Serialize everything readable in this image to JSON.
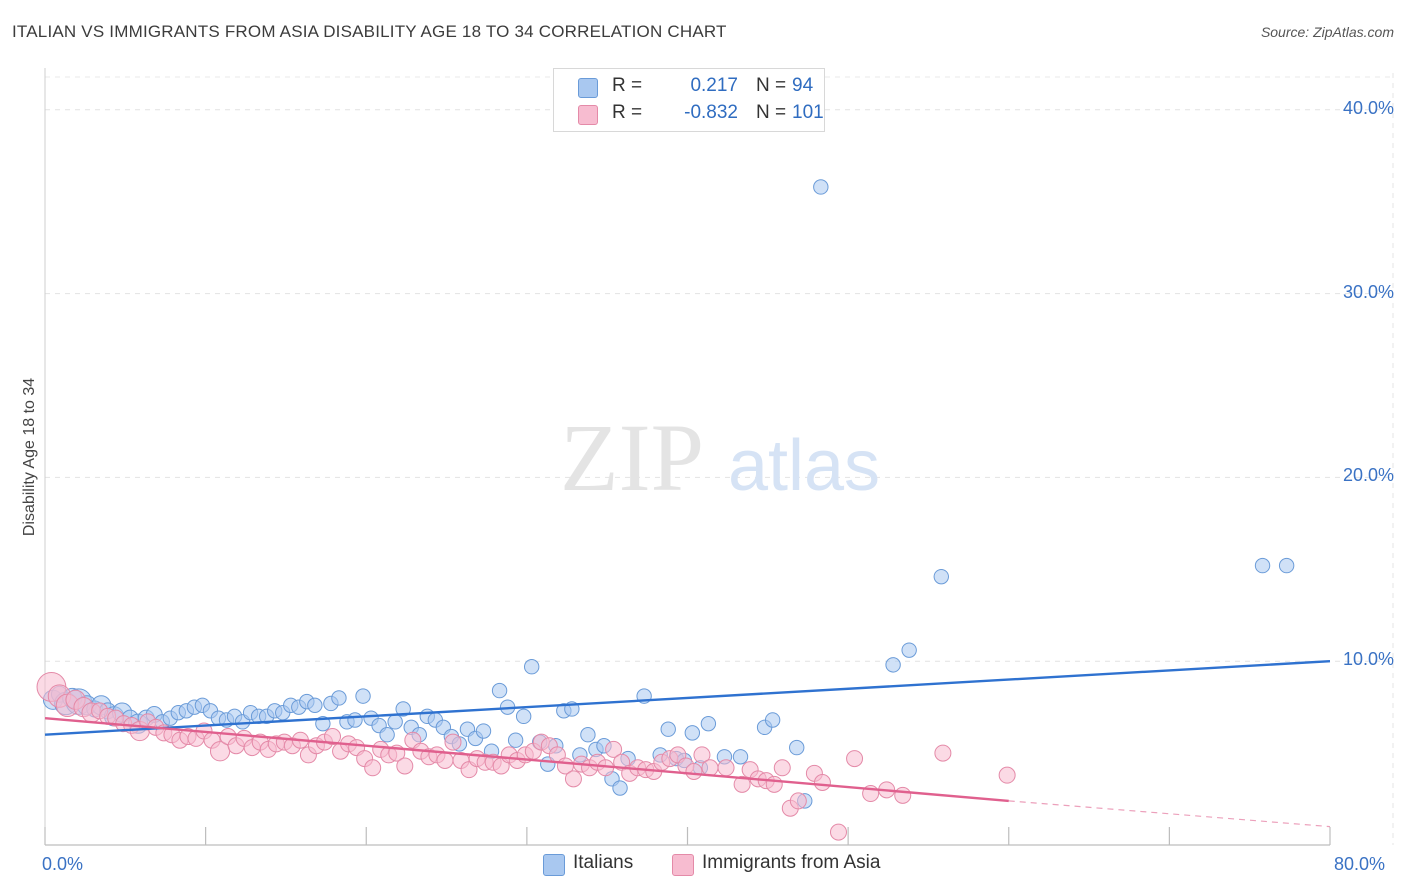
{
  "title": "ITALIAN VS IMMIGRANTS FROM ASIA DISABILITY AGE 18 TO 34 CORRELATION CHART",
  "source": "Source: ZipAtlas.com",
  "watermark": {
    "zip": "ZIP",
    "atlas": "atlas"
  },
  "legend": {
    "rows": [
      {
        "r_label": "R =",
        "r_value": "0.217",
        "n_label": "N =",
        "n_value": "94",
        "color": "#a9c8f0",
        "border": "#6a9bd8"
      },
      {
        "r_label": "R =",
        "r_value": "-0.832",
        "n_label": "N =",
        "n_value": "101",
        "color": "#f7bcd0",
        "border": "#e48aa8"
      }
    ]
  },
  "bottom_legend": [
    {
      "label": "Italians",
      "color": "#a9c8f0",
      "border": "#6a9bd8"
    },
    {
      "label": "Immigrants from Asia",
      "color": "#f7bcd0",
      "border": "#e48aa8"
    }
  ],
  "chart_data": {
    "type": "scatter",
    "ylabel": "Disability Age 18 to 34",
    "xlim": [
      0,
      80
    ],
    "ylim": [
      0,
      42
    ],
    "x_tick_labels": [
      "0.0%",
      "80.0%"
    ],
    "y_ticks": [
      {
        "value": 10,
        "label": "10.0%"
      },
      {
        "value": 20,
        "label": "20.0%"
      },
      {
        "value": 30,
        "label": "30.0%"
      },
      {
        "value": 40,
        "label": "40.0%"
      }
    ],
    "grid": true,
    "series": [
      {
        "name": "Italians",
        "color": "#a9c8f0",
        "stroke": "#6a9bd8",
        "line_color": "#2f72d0",
        "trend": {
          "x": [
            0,
            80
          ],
          "y": [
            6.0,
            10.0
          ]
        },
        "points": [
          [
            0.5,
            7.9,
            12
          ],
          [
            0.9,
            8.2,
            10
          ],
          [
            1.3,
            7.7,
            14
          ],
          [
            1.7,
            8.0,
            12
          ],
          [
            2.1,
            7.8,
            16
          ],
          [
            2.6,
            7.6,
            12
          ],
          [
            3.1,
            7.4,
            10
          ],
          [
            3.5,
            7.6,
            12
          ],
          [
            3.9,
            7.3,
            10
          ],
          [
            4.3,
            7.0,
            12
          ],
          [
            4.8,
            7.2,
            12
          ],
          [
            5.3,
            6.9,
            10
          ],
          [
            5.8,
            6.6,
            12
          ],
          [
            6.3,
            6.9,
            10
          ],
          [
            6.8,
            7.1,
            10
          ],
          [
            7.3,
            6.7,
            9
          ],
          [
            7.8,
            6.9,
            9
          ],
          [
            8.3,
            7.2,
            9
          ],
          [
            8.8,
            7.3,
            9
          ],
          [
            9.3,
            7.5,
            9
          ],
          [
            9.8,
            7.6,
            9
          ],
          [
            10.3,
            7.3,
            9
          ],
          [
            10.8,
            6.9,
            9
          ],
          [
            11.3,
            6.8,
            9
          ],
          [
            11.8,
            7.0,
            9
          ],
          [
            12.3,
            6.7,
            9
          ],
          [
            12.8,
            7.2,
            9
          ],
          [
            13.3,
            7.0,
            9
          ],
          [
            13.8,
            7.0,
            9
          ],
          [
            14.3,
            7.3,
            9
          ],
          [
            14.8,
            7.2,
            9
          ],
          [
            15.3,
            7.6,
            9
          ],
          [
            15.8,
            7.5,
            9
          ],
          [
            16.3,
            7.8,
            9
          ],
          [
            16.8,
            7.6,
            9
          ],
          [
            17.3,
            6.6,
            9
          ],
          [
            17.8,
            7.7,
            9
          ],
          [
            18.3,
            8.0,
            9
          ],
          [
            18.8,
            6.7,
            9
          ],
          [
            19.3,
            6.8,
            9
          ],
          [
            19.8,
            8.1,
            9
          ],
          [
            20.3,
            6.9,
            9
          ],
          [
            20.8,
            6.5,
            9
          ],
          [
            21.3,
            6.0,
            9
          ],
          [
            21.8,
            6.7,
            9
          ],
          [
            22.3,
            7.4,
            9
          ],
          [
            22.8,
            6.4,
            9
          ],
          [
            23.3,
            6.0,
            9
          ],
          [
            23.8,
            7.0,
            9
          ],
          [
            24.3,
            6.8,
            9
          ],
          [
            24.8,
            6.4,
            9
          ],
          [
            25.3,
            5.9,
            9
          ],
          [
            25.8,
            5.5,
            9
          ],
          [
            26.3,
            6.3,
            9
          ],
          [
            26.8,
            5.8,
            9
          ],
          [
            27.3,
            6.2,
            9
          ],
          [
            27.8,
            5.1,
            9
          ],
          [
            28.3,
            8.4,
            9
          ],
          [
            28.8,
            7.5,
            9
          ],
          [
            29.3,
            5.7,
            9
          ],
          [
            29.8,
            7.0,
            9
          ],
          [
            30.3,
            9.7,
            9
          ],
          [
            30.8,
            5.6,
            9
          ],
          [
            31.3,
            4.4,
            9
          ],
          [
            31.8,
            5.4,
            9
          ],
          [
            32.3,
            7.3,
            9
          ],
          [
            32.8,
            7.4,
            9
          ],
          [
            33.3,
            4.9,
            9
          ],
          [
            33.8,
            6.0,
            9
          ],
          [
            34.3,
            5.2,
            9
          ],
          [
            34.8,
            5.4,
            9
          ],
          [
            35.3,
            3.6,
            9
          ],
          [
            35.8,
            3.1,
            9
          ],
          [
            36.3,
            4.7,
            9
          ],
          [
            37.3,
            8.1,
            9
          ],
          [
            38.3,
            4.9,
            9
          ],
          [
            38.8,
            6.3,
            9
          ],
          [
            39.3,
            4.7,
            9
          ],
          [
            39.8,
            4.6,
            9
          ],
          [
            40.3,
            6.1,
            9
          ],
          [
            40.8,
            4.2,
            9
          ],
          [
            41.3,
            6.6,
            9
          ],
          [
            42.3,
            4.8,
            9
          ],
          [
            43.3,
            4.8,
            9
          ],
          [
            44.8,
            6.4,
            9
          ],
          [
            45.3,
            6.8,
            9
          ],
          [
            46.8,
            5.3,
            9
          ],
          [
            47.3,
            2.4,
            9
          ],
          [
            48.3,
            35.8,
            9
          ],
          [
            52.8,
            9.8,
            9
          ],
          [
            53.8,
            10.6,
            9
          ],
          [
            55.8,
            14.6,
            9
          ],
          [
            75.8,
            15.2,
            9
          ],
          [
            77.3,
            15.2,
            9
          ]
        ]
      },
      {
        "name": "Immigrants from Asia",
        "color": "#f7bcd0",
        "stroke": "#e48aa8",
        "line_color": "#e0608e",
        "trend": {
          "x": [
            0,
            60
          ],
          "y": [
            6.9,
            2.4
          ]
        },
        "trend_dashed": {
          "x": [
            60,
            80
          ],
          "y": [
            2.4,
            1.0
          ]
        },
        "points": [
          [
            0.4,
            8.6,
            18
          ],
          [
            0.9,
            8.1,
            14
          ],
          [
            1.4,
            7.6,
            14
          ],
          [
            1.9,
            7.9,
            12
          ],
          [
            2.4,
            7.5,
            12
          ],
          [
            2.9,
            7.2,
            12
          ],
          [
            3.4,
            7.3,
            10
          ],
          [
            3.9,
            7.0,
            10
          ],
          [
            4.4,
            6.9,
            10
          ],
          [
            4.9,
            6.6,
            10
          ],
          [
            5.4,
            6.5,
            10
          ],
          [
            5.9,
            6.2,
            12
          ],
          [
            6.4,
            6.7,
            10
          ],
          [
            6.9,
            6.4,
            10
          ],
          [
            7.4,
            6.1,
            10
          ],
          [
            7.9,
            6.0,
            10
          ],
          [
            8.4,
            5.7,
            10
          ],
          [
            8.9,
            5.9,
            10
          ],
          [
            9.4,
            5.8,
            10
          ],
          [
            9.9,
            6.2,
            10
          ],
          [
            10.4,
            5.7,
            10
          ],
          [
            10.9,
            5.1,
            12
          ],
          [
            11.4,
            5.9,
            10
          ],
          [
            11.9,
            5.4,
            10
          ],
          [
            12.4,
            5.8,
            10
          ],
          [
            12.9,
            5.3,
            10
          ],
          [
            13.4,
            5.6,
            10
          ],
          [
            13.9,
            5.2,
            10
          ],
          [
            14.4,
            5.5,
            10
          ],
          [
            14.9,
            5.6,
            10
          ],
          [
            15.4,
            5.4,
            10
          ],
          [
            15.9,
            5.7,
            10
          ],
          [
            16.4,
            4.9,
            10
          ],
          [
            16.9,
            5.4,
            10
          ],
          [
            17.4,
            5.6,
            10
          ],
          [
            17.9,
            5.9,
            10
          ],
          [
            18.4,
            5.1,
            10
          ],
          [
            18.9,
            5.5,
            10
          ],
          [
            19.4,
            5.3,
            10
          ],
          [
            19.9,
            4.7,
            10
          ],
          [
            20.4,
            4.2,
            10
          ],
          [
            20.9,
            5.2,
            10
          ],
          [
            21.4,
            4.9,
            10
          ],
          [
            21.9,
            5.0,
            10
          ],
          [
            22.4,
            4.3,
            10
          ],
          [
            22.9,
            5.7,
            10
          ],
          [
            23.4,
            5.1,
            10
          ],
          [
            23.9,
            4.8,
            10
          ],
          [
            24.4,
            4.9,
            10
          ],
          [
            24.9,
            4.6,
            10
          ],
          [
            25.4,
            5.6,
            10
          ],
          [
            25.9,
            4.6,
            10
          ],
          [
            26.4,
            4.1,
            10
          ],
          [
            26.9,
            4.7,
            10
          ],
          [
            27.4,
            4.5,
            10
          ],
          [
            27.9,
            4.5,
            10
          ],
          [
            28.4,
            4.3,
            10
          ],
          [
            28.9,
            4.9,
            10
          ],
          [
            29.4,
            4.6,
            10
          ],
          [
            29.9,
            4.9,
            10
          ],
          [
            30.4,
            5.1,
            10
          ],
          [
            30.9,
            5.6,
            10
          ],
          [
            31.4,
            5.4,
            10
          ],
          [
            31.9,
            4.9,
            10
          ],
          [
            32.4,
            4.3,
            10
          ],
          [
            32.9,
            3.6,
            10
          ],
          [
            33.4,
            4.4,
            10
          ],
          [
            33.9,
            4.2,
            10
          ],
          [
            34.4,
            4.5,
            10
          ],
          [
            34.9,
            4.2,
            10
          ],
          [
            35.4,
            5.2,
            10
          ],
          [
            35.9,
            4.5,
            10
          ],
          [
            36.4,
            3.9,
            10
          ],
          [
            36.9,
            4.2,
            10
          ],
          [
            37.4,
            4.1,
            10
          ],
          [
            37.9,
            4.0,
            10
          ],
          [
            38.4,
            4.5,
            10
          ],
          [
            38.9,
            4.7,
            10
          ],
          [
            39.4,
            4.9,
            10
          ],
          [
            39.9,
            4.3,
            10
          ],
          [
            40.4,
            4.0,
            10
          ],
          [
            40.9,
            4.9,
            10
          ],
          [
            41.4,
            4.2,
            10
          ],
          [
            42.4,
            4.2,
            10
          ],
          [
            43.4,
            3.3,
            10
          ],
          [
            43.9,
            4.1,
            10
          ],
          [
            44.4,
            3.6,
            10
          ],
          [
            44.9,
            3.5,
            10
          ],
          [
            45.4,
            3.3,
            10
          ],
          [
            45.9,
            4.2,
            10
          ],
          [
            46.4,
            2.0,
            10
          ],
          [
            46.9,
            2.4,
            10
          ],
          [
            47.9,
            3.9,
            10
          ],
          [
            48.4,
            3.4,
            10
          ],
          [
            49.4,
            0.7,
            10
          ],
          [
            50.4,
            4.7,
            10
          ],
          [
            51.4,
            2.8,
            10
          ],
          [
            52.4,
            3.0,
            10
          ],
          [
            53.4,
            2.7,
            10
          ],
          [
            55.9,
            5.0,
            10
          ],
          [
            59.9,
            3.8,
            10
          ]
        ]
      }
    ]
  }
}
